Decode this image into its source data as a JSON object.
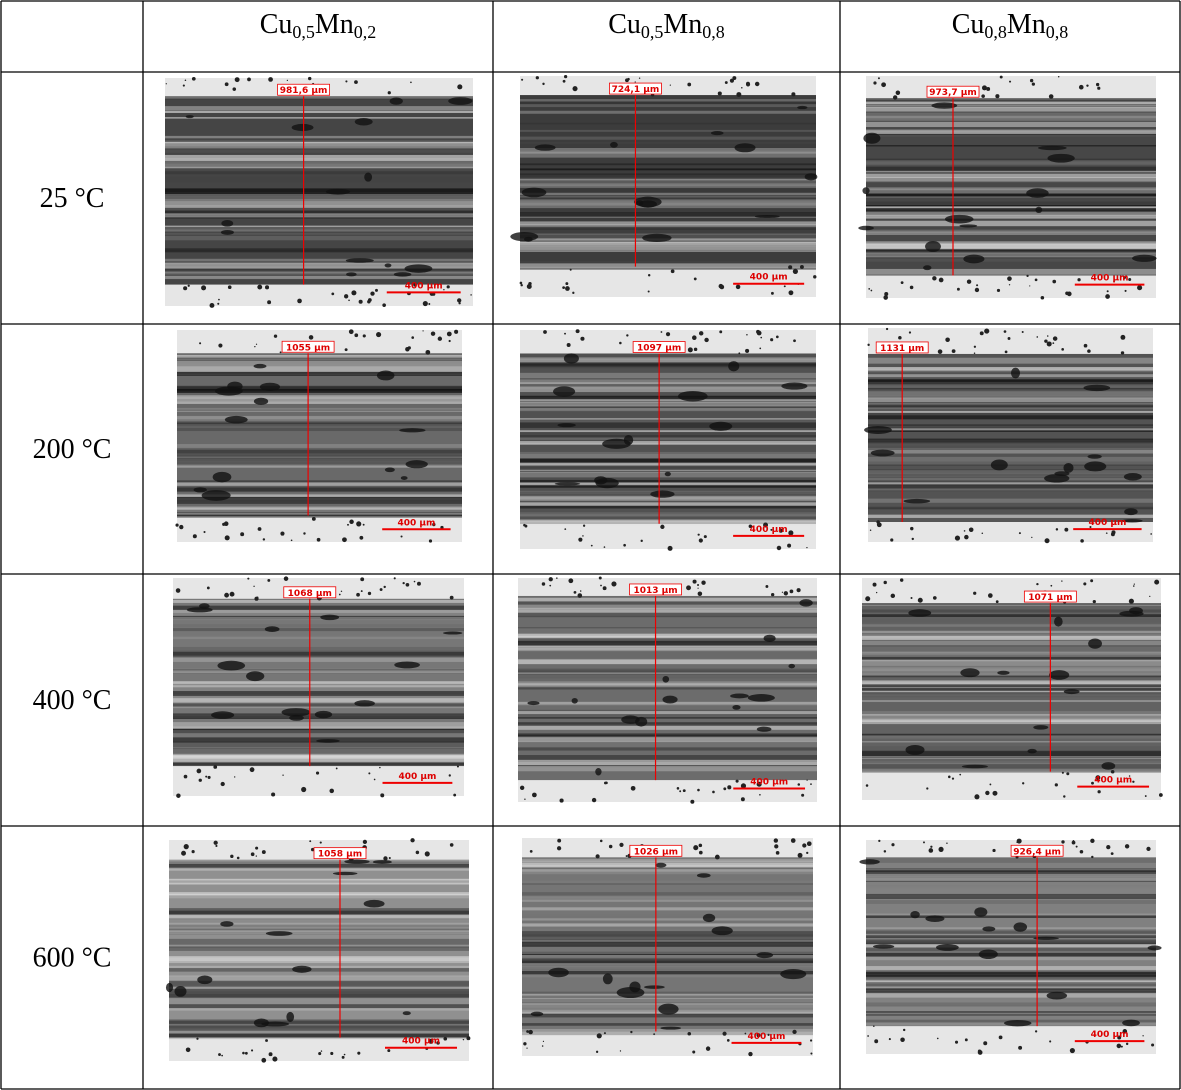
{
  "header": {
    "columns": [
      [
        "Cu",
        "0,5",
        "Mn",
        "0,2"
      ],
      [
        "Cu",
        "0,5",
        "Mn",
        "0,8"
      ],
      [
        "Cu",
        "0,8",
        "Mn",
        "0,8"
      ]
    ]
  },
  "rows": [
    {
      "temperature": "25 °C",
      "cells": [
        {
          "measurement": "981,6 µm",
          "scale": "400 µm"
        },
        {
          "measurement": "724,1 µm",
          "scale": "400 µm"
        },
        {
          "measurement": "973,7 µm",
          "scale": "400 µm"
        }
      ]
    },
    {
      "temperature": "200 °C",
      "cells": [
        {
          "measurement": "1055 µm",
          "scale": "400 µm"
        },
        {
          "measurement": "1097 µm",
          "scale": "400 µm"
        },
        {
          "measurement": "1131 µm",
          "scale": "400 µm"
        }
      ]
    },
    {
      "temperature": "400 °C",
      "cells": [
        {
          "measurement": "1068 µm",
          "scale": "400 µm"
        },
        {
          "measurement": "1013 µm",
          "scale": "400 µm"
        },
        {
          "measurement": "1071 µm",
          "scale": "400 µm"
        }
      ]
    },
    {
      "temperature": "600 °C",
      "cells": [
        {
          "measurement": "1058 µm",
          "scale": "400 µm"
        },
        {
          "measurement": "1026 µm",
          "scale": "400 µm"
        },
        {
          "measurement": "926,4 µm",
          "scale": "400 µm"
        }
      ]
    }
  ]
}
